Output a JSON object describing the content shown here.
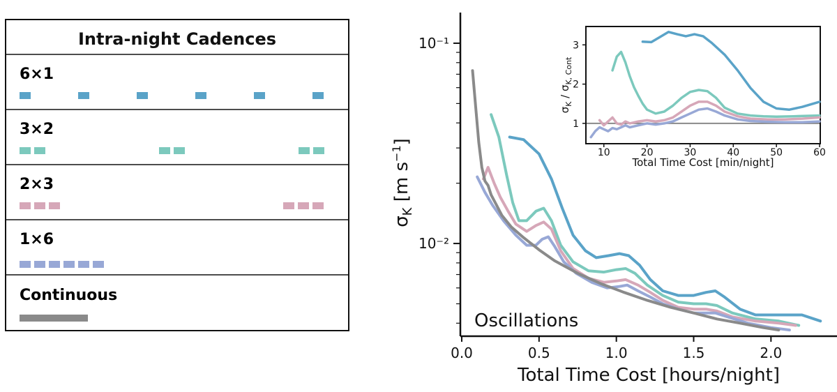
{
  "legend": {
    "title": "Intra-night Cadences",
    "items": [
      {
        "label": "6×1",
        "color": "#5aa3c8",
        "kind": "segments",
        "group_size": 1,
        "groups": 6
      },
      {
        "label": "3×2",
        "color": "#7cc9bd",
        "kind": "segments",
        "group_size": 2,
        "groups": 3
      },
      {
        "label": "2×3",
        "color": "#d6a7b8",
        "kind": "segments",
        "group_size": 3,
        "groups": 2
      },
      {
        "label": "1×6",
        "color": "#98a8d6",
        "kind": "segments",
        "group_size": 6,
        "groups": 1
      },
      {
        "label": "Continuous",
        "color": "#8a8a8a",
        "kind": "bar"
      }
    ]
  },
  "chart_data": [
    {
      "id": "main",
      "type": "line",
      "yscale": "log",
      "xlabel": "Total Time Cost [hours/night]",
      "ylabel": "σK [m s⁻¹]",
      "xlim": [
        0.0,
        2.4
      ],
      "ylim": [
        0.0035,
        0.14
      ],
      "xticks": [
        0.0,
        0.5,
        1.0,
        1.5,
        2.0
      ],
      "xtick_labels": [
        "0.0",
        "0.5",
        "1.0",
        "1.5",
        "2.0"
      ],
      "yticks": [
        0.01,
        0.1
      ],
      "ytick_labels": [
        "10⁻²",
        "10⁻¹"
      ],
      "annotation": "Oscillations",
      "series": [
        {
          "name": "6×1",
          "color": "#5aa3c8",
          "x": [
            0.31,
            0.4,
            0.5,
            0.58,
            0.65,
            0.72,
            0.8,
            0.87,
            0.95,
            1.02,
            1.08,
            1.15,
            1.22,
            1.3,
            1.4,
            1.5,
            1.58,
            1.64,
            1.7,
            1.8,
            1.9,
            2.05,
            2.2,
            2.32
          ],
          "y": [
            0.034,
            0.033,
            0.028,
            0.021,
            0.015,
            0.011,
            0.0092,
            0.0085,
            0.0087,
            0.0089,
            0.0087,
            0.0078,
            0.0066,
            0.0058,
            0.0055,
            0.0055,
            0.0057,
            0.0058,
            0.0054,
            0.0047,
            0.0044,
            0.0044,
            0.0044,
            0.0041
          ]
        },
        {
          "name": "3×2",
          "color": "#7cc9bd",
          "x": [
            0.19,
            0.24,
            0.29,
            0.33,
            0.37,
            0.42,
            0.48,
            0.53,
            0.58,
            0.64,
            0.72,
            0.82,
            0.92,
            1.0,
            1.06,
            1.12,
            1.2,
            1.3,
            1.4,
            1.5,
            1.58,
            1.65,
            1.75,
            1.9,
            2.05,
            2.18
          ],
          "y": [
            0.044,
            0.034,
            0.022,
            0.016,
            0.013,
            0.013,
            0.0145,
            0.015,
            0.013,
            0.0098,
            0.0081,
            0.0073,
            0.0072,
            0.0074,
            0.0075,
            0.0071,
            0.0062,
            0.0055,
            0.0051,
            0.005,
            0.005,
            0.0049,
            0.0045,
            0.0042,
            0.0041,
            0.0039
          ]
        },
        {
          "name": "2×3",
          "color": "#d6a7b8",
          "x": [
            0.14,
            0.17,
            0.21,
            0.25,
            0.3,
            0.35,
            0.42,
            0.48,
            0.53,
            0.58,
            0.64,
            0.72,
            0.82,
            0.92,
            1.0,
            1.06,
            1.14,
            1.22,
            1.3,
            1.4,
            1.5,
            1.58,
            1.65,
            1.75,
            1.9,
            2.05,
            2.16
          ],
          "y": [
            0.021,
            0.024,
            0.02,
            0.017,
            0.0145,
            0.0125,
            0.0115,
            0.0123,
            0.0128,
            0.0118,
            0.0092,
            0.0075,
            0.0067,
            0.0064,
            0.0065,
            0.0066,
            0.0062,
            0.0057,
            0.0052,
            0.0048,
            0.0047,
            0.0047,
            0.0046,
            0.0043,
            0.0041,
            0.004,
            0.0039
          ]
        },
        {
          "name": "1×6",
          "color": "#98a8d6",
          "x": [
            0.1,
            0.15,
            0.2,
            0.27,
            0.35,
            0.42,
            0.48,
            0.52,
            0.56,
            0.6,
            0.66,
            0.74,
            0.84,
            0.94,
            1.02,
            1.07,
            1.14,
            1.22,
            1.3,
            1.4,
            1.5,
            1.58,
            1.64,
            1.72,
            1.85,
            2.0,
            2.12
          ],
          "y": [
            0.0215,
            0.018,
            0.0155,
            0.013,
            0.011,
            0.0098,
            0.0098,
            0.0105,
            0.0108,
            0.0097,
            0.0081,
            0.0071,
            0.0064,
            0.006,
            0.0061,
            0.0062,
            0.0058,
            0.0054,
            0.005,
            0.0047,
            0.0045,
            0.0045,
            0.0045,
            0.0043,
            0.004,
            0.0038,
            0.0037
          ]
        },
        {
          "name": "Continuous",
          "color": "#8a8a8a",
          "x": [
            0.07,
            0.09,
            0.11,
            0.13,
            0.15,
            0.17,
            0.19,
            0.22,
            0.26,
            0.32,
            0.4,
            0.5,
            0.6,
            0.75,
            0.9,
            1.05,
            1.2,
            1.35,
            1.5,
            1.65,
            1.8,
            1.95,
            2.05
          ],
          "y": [
            0.073,
            0.048,
            0.032,
            0.024,
            0.0205,
            0.0195,
            0.0175,
            0.0158,
            0.0138,
            0.0121,
            0.0107,
            0.0093,
            0.0082,
            0.0071,
            0.0063,
            0.0057,
            0.0052,
            0.0048,
            0.0045,
            0.0042,
            0.004,
            0.0038,
            0.0037
          ]
        }
      ]
    },
    {
      "id": "inset",
      "type": "line",
      "xlabel": "Total Time Cost [min/night]",
      "ylabel": "σK / σK, Cont",
      "xlim": [
        6,
        60
      ],
      "ylim": [
        0.5,
        3.45
      ],
      "xticks": [
        10,
        20,
        30,
        40,
        50,
        60
      ],
      "xtick_labels": [
        "10",
        "20",
        "30",
        "40",
        "50",
        "60"
      ],
      "yticks": [
        1,
        2,
        3
      ],
      "ytick_labels": [
        "1",
        "2",
        "3"
      ],
      "reference_line": 1,
      "series": [
        {
          "name": "6×1",
          "color": "#5aa3c8",
          "x": [
            19,
            21,
            23,
            25,
            27,
            29,
            31,
            33,
            35,
            38,
            41,
            44,
            47,
            50,
            53,
            56,
            60
          ],
          "y": [
            3.08,
            3.07,
            3.2,
            3.33,
            3.27,
            3.22,
            3.27,
            3.22,
            3.05,
            2.75,
            2.35,
            1.9,
            1.55,
            1.38,
            1.35,
            1.42,
            1.55
          ]
        },
        {
          "name": "3×2",
          "color": "#7cc9bd",
          "x": [
            12,
            13,
            14,
            15,
            16,
            17,
            18,
            19,
            20,
            22,
            24,
            26,
            28,
            30,
            32,
            34,
            36,
            38,
            41,
            44,
            47,
            50,
            54,
            60
          ],
          "y": [
            2.35,
            2.7,
            2.82,
            2.55,
            2.2,
            1.92,
            1.7,
            1.5,
            1.35,
            1.25,
            1.3,
            1.45,
            1.65,
            1.8,
            1.85,
            1.82,
            1.65,
            1.4,
            1.25,
            1.2,
            1.18,
            1.17,
            1.18,
            1.2
          ]
        },
        {
          "name": "2×3",
          "color": "#d6a7b8",
          "x": [
            9,
            10,
            11,
            12,
            13,
            14,
            15,
            16,
            18,
            20,
            22,
            24,
            26,
            28,
            30,
            32,
            34,
            36,
            38,
            41,
            44,
            48,
            52,
            56,
            60
          ],
          "y": [
            1.08,
            0.95,
            1.05,
            1.15,
            1.0,
            0.97,
            1.05,
            1.0,
            1.05,
            1.08,
            1.05,
            1.08,
            1.15,
            1.3,
            1.45,
            1.55,
            1.55,
            1.45,
            1.3,
            1.18,
            1.12,
            1.1,
            1.1,
            1.12,
            1.15
          ]
        },
        {
          "name": "1×6",
          "color": "#98a8d6",
          "x": [
            7,
            8,
            9,
            10,
            11,
            12,
            13,
            14,
            15,
            16,
            18,
            20,
            22,
            24,
            26,
            28,
            30,
            32,
            34,
            36,
            38,
            41,
            44,
            48,
            52,
            56,
            60
          ],
          "y": [
            0.65,
            0.8,
            0.9,
            0.85,
            0.8,
            0.88,
            0.85,
            0.9,
            0.95,
            0.9,
            0.95,
            1.0,
            0.97,
            1.0,
            1.05,
            1.15,
            1.25,
            1.35,
            1.38,
            1.3,
            1.2,
            1.1,
            1.06,
            1.04,
            1.03,
            1.03,
            1.05
          ]
        }
      ]
    }
  ]
}
